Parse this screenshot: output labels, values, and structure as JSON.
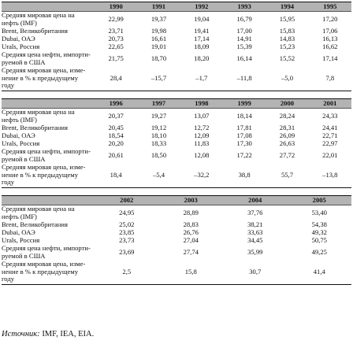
{
  "row_labels": {
    "r1": [
      "Средняя мировая цена на",
      "нефть (IMF)"
    ],
    "r2": "Brent, Великобритания",
    "r3": "Dubai, ОАЭ",
    "r4": "Urals, Россия",
    "r5": [
      "Средняя цена нефти, импорти-",
      "руемой в США"
    ],
    "r6": [
      "Средняя мировая цена, изме-",
      "нение в % к предыдущему",
      "году"
    ]
  },
  "blocks": [
    {
      "years": [
        "1990",
        "1991",
        "1992",
        "1993",
        "1994",
        "1995"
      ],
      "rows": [
        [
          "22,99",
          "19,37",
          "19,04",
          "16,79",
          "15,95",
          "17,20"
        ],
        [
          "23,71",
          "19,98",
          "19,41",
          "17,00",
          "15,83",
          "17,06"
        ],
        [
          "20,73",
          "16,61",
          "17,14",
          "14,91",
          "14,83",
          "16,13"
        ],
        [
          "22,65",
          "19,01",
          "18,09",
          "15,39",
          "15,23",
          "16,62"
        ],
        [
          "21,75",
          "18,70",
          "18,20",
          "16,14",
          "15,52",
          "17,14"
        ],
        [
          "28,4",
          "–15,7",
          "–1,7",
          "–11,8",
          "–5,0",
          "7,8"
        ]
      ]
    },
    {
      "years": [
        "1996",
        "1997",
        "1998",
        "1999",
        "2000",
        "2001"
      ],
      "rows": [
        [
          "20,37",
          "19,27",
          "13,07",
          "18,14",
          "28,24",
          "24,33"
        ],
        [
          "20,45",
          "19,12",
          "12,72",
          "17,81",
          "28,31",
          "24,41"
        ],
        [
          "18,54",
          "18,10",
          "12,09",
          "17,08",
          "26,09",
          "22,71"
        ],
        [
          "20,20",
          "18,33",
          "11,83",
          "17,30",
          "26,63",
          "22,97"
        ],
        [
          "20,61",
          "18,50",
          "12,08",
          "17,22",
          "27,72",
          "22,01"
        ],
        [
          "18,4",
          "–5,4",
          "–32,2",
          "38,8",
          "55,7",
          "–13,8"
        ]
      ]
    },
    {
      "years": [
        "2002",
        "2003",
        "2004",
        "2005"
      ],
      "rows": [
        [
          "24,95",
          "28,89",
          "37,76",
          "53,40"
        ],
        [
          "25,02",
          "28,83",
          "38,21",
          "54,38"
        ],
        [
          "23,85",
          "26,76",
          "33,63",
          "49,32"
        ],
        [
          "23,73",
          "27,04",
          "34,45",
          "50,75"
        ],
        [
          "23,69",
          "27,74",
          "35,99",
          "49,25"
        ],
        [
          "2,5",
          "15,8",
          "30,7",
          "41,4"
        ]
      ]
    }
  ],
  "source": {
    "label": "Источник:",
    "text": " IMF, IEA, EIA."
  }
}
